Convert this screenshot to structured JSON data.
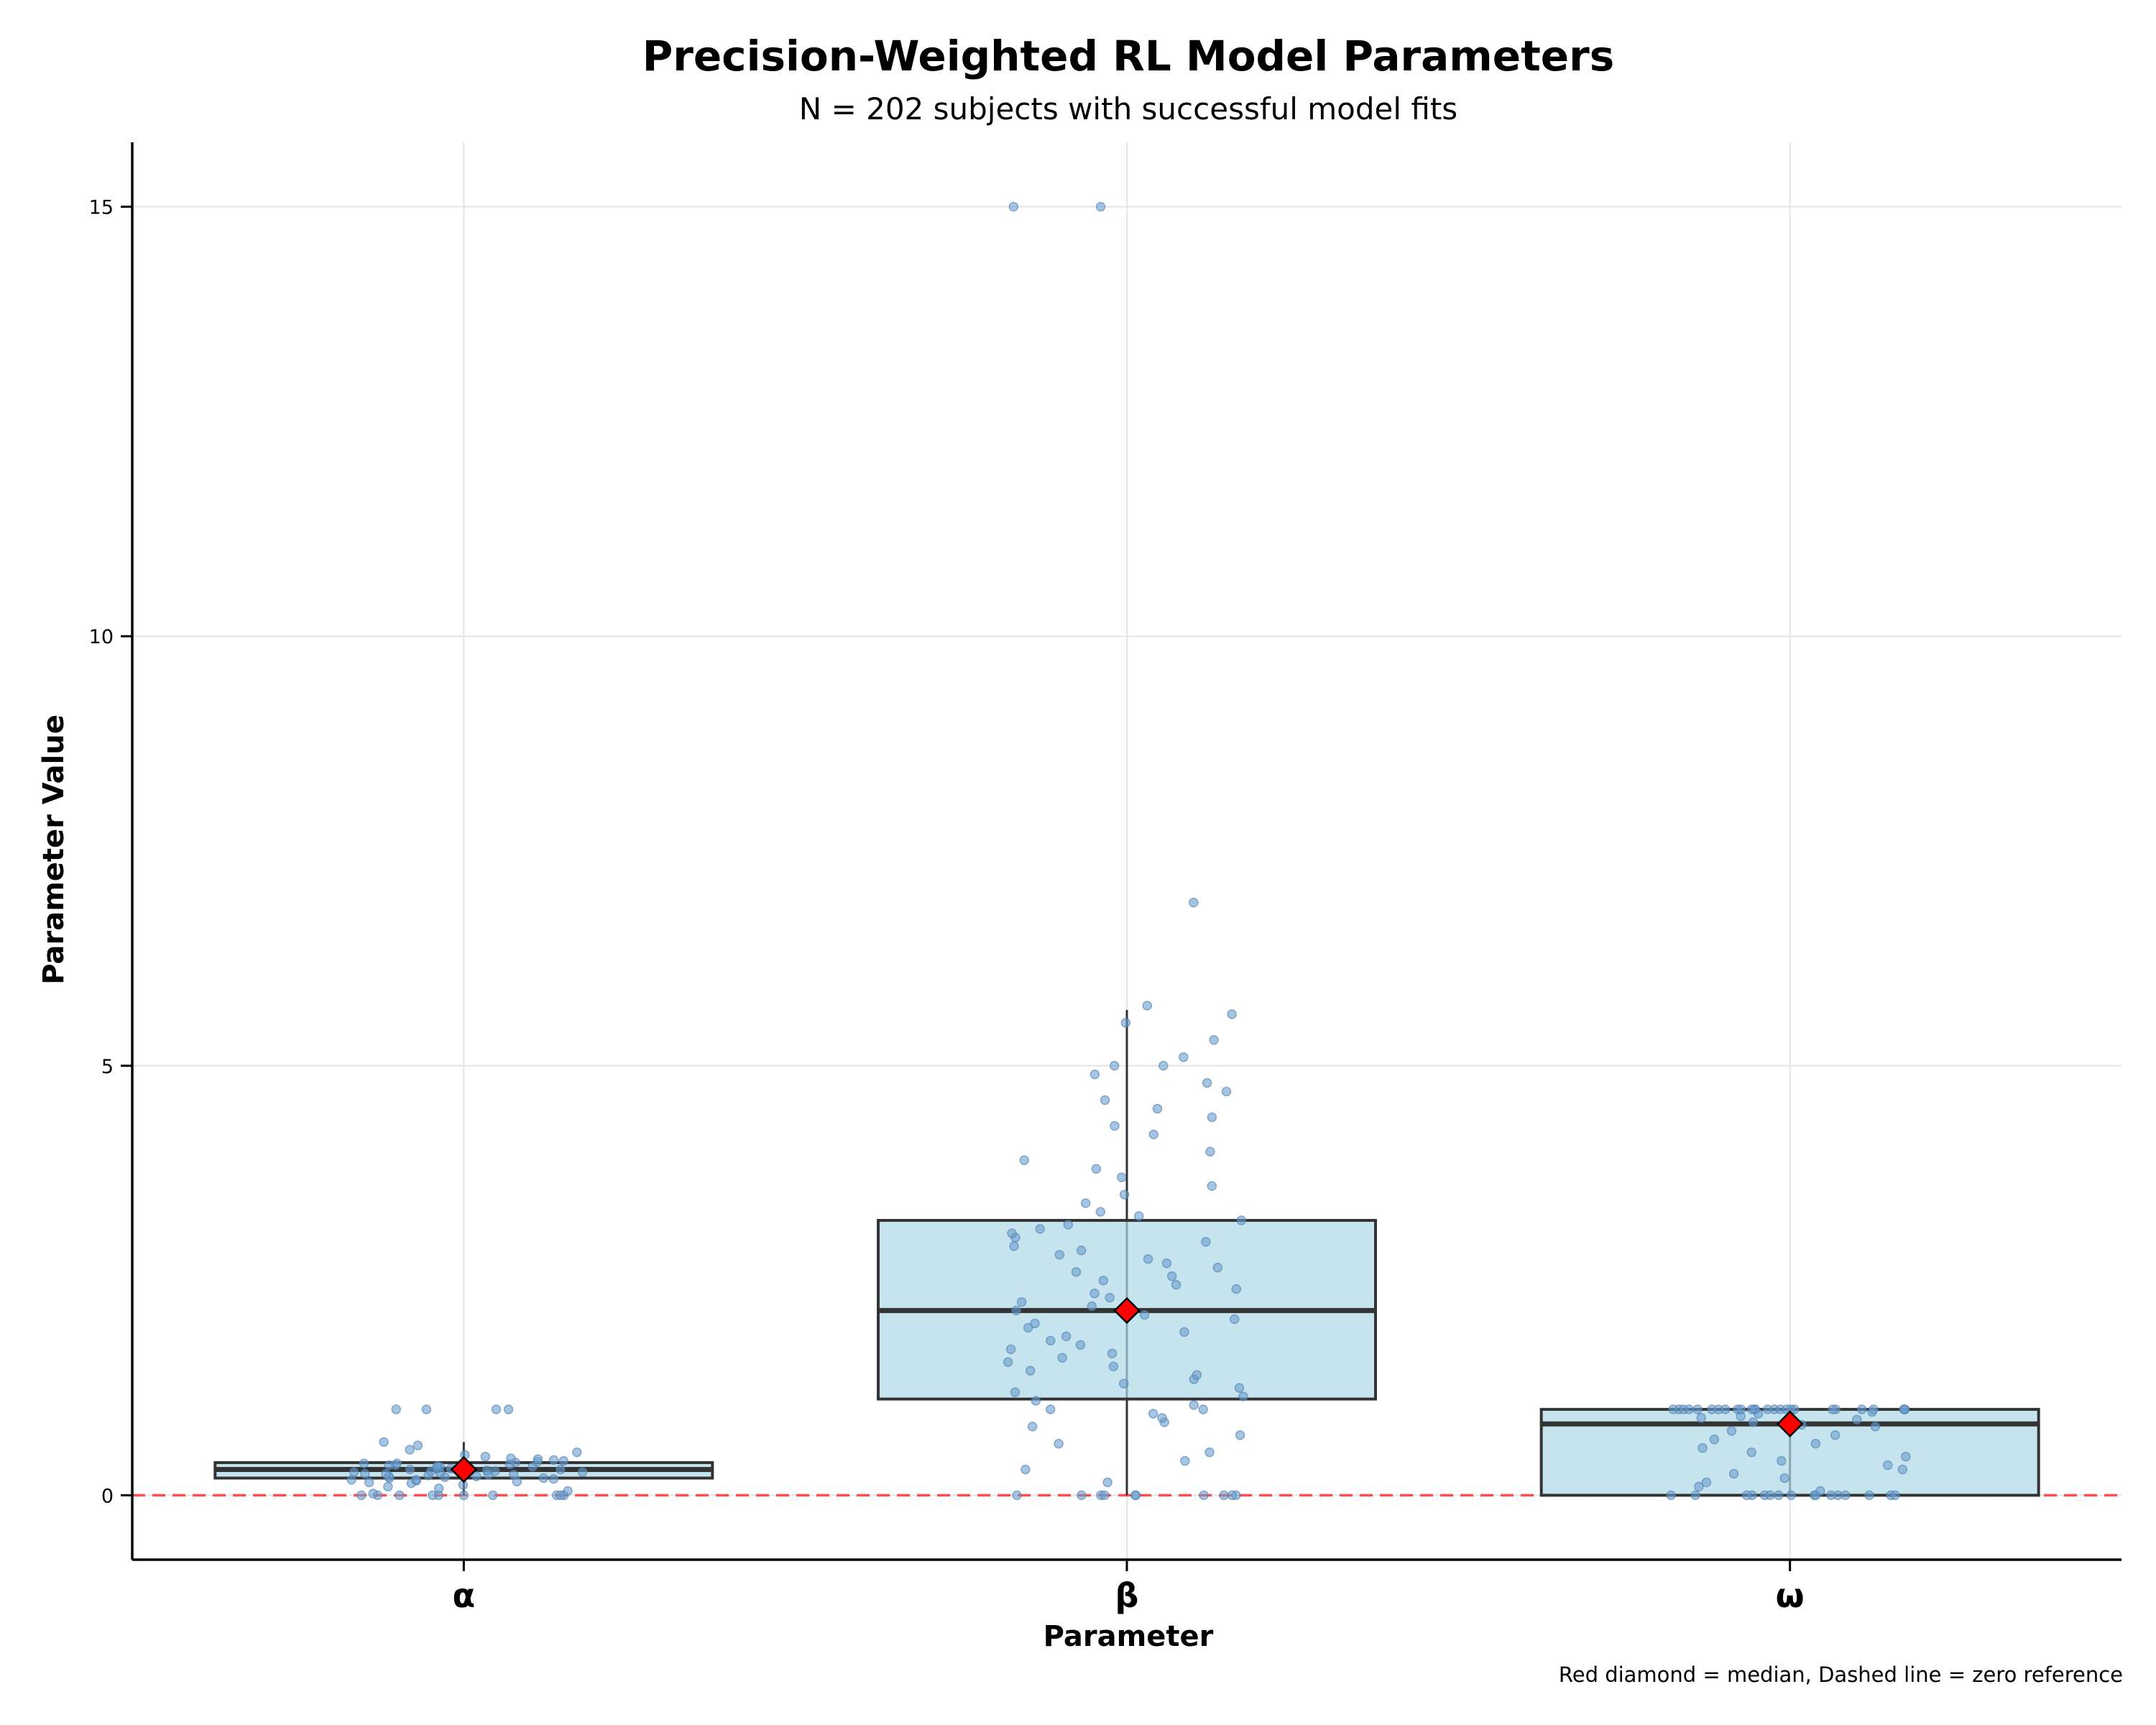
{
  "chart_data": {
    "type": "box",
    "title": "Precision-Weighted RL Model Parameters",
    "subtitle": "N = 202 subjects with successful model fits",
    "xlabel": "Parameter",
    "ylabel": "Parameter Value",
    "footnote": "Red diamond = median, Dashed line = zero reference",
    "categories": [
      "α",
      "β",
      "ω"
    ],
    "yticks": [
      0,
      5,
      10,
      15
    ],
    "ytick_labels": [
      "0",
      "5",
      "10",
      "15"
    ],
    "ylim": [
      -0.75,
      15.75
    ],
    "grid": true,
    "reference_line": {
      "y": 0,
      "style": "dashed",
      "color": "#ff3333"
    },
    "colors": {
      "box_fill": "#add8e6",
      "box_edge": "#333333",
      "points": "#6a9fcf",
      "median_marker": "#ff0000",
      "grid": "#e5e5e5"
    },
    "boxes": [
      {
        "category": "α",
        "q1": 0.2,
        "median": 0.3,
        "q3": 0.38,
        "whisker_low": 0.0,
        "whisker_high": 0.62,
        "points": [
          0,
          0,
          0,
          0,
          0,
          0,
          0,
          0,
          0,
          0,
          0.02,
          0.05,
          0.08,
          0.1,
          0.12,
          0.14,
          0.15,
          0.16,
          0.17,
          0.18,
          0.18,
          0.19,
          0.2,
          0.2,
          0.21,
          0.22,
          0.22,
          0.23,
          0.24,
          0.24,
          0.25,
          0.25,
          0.26,
          0.27,
          0.27,
          0.28,
          0.28,
          0.29,
          0.3,
          0.3,
          0.31,
          0.31,
          0.32,
          0.33,
          0.33,
          0.34,
          0.35,
          0.35,
          0.36,
          0.37,
          0.37,
          0.38,
          0.39,
          0.4,
          0.41,
          0.42,
          0.43,
          0.45,
          0.47,
          0.5,
          0.53,
          0.58,
          0.62,
          1.0,
          1.0,
          1.0,
          1.0
        ]
      },
      {
        "category": "β",
        "q1": 1.12,
        "median": 2.15,
        "q3": 3.2,
        "whisker_low": 0.0,
        "whisker_high": 5.65,
        "points": [
          0,
          0,
          0,
          0,
          0,
          0,
          0,
          0,
          0,
          0,
          0.15,
          0.3,
          0.4,
          0.5,
          0.6,
          0.7,
          0.8,
          0.85,
          0.9,
          0.95,
          1.0,
          1.0,
          1.05,
          1.1,
          1.15,
          1.2,
          1.25,
          1.3,
          1.35,
          1.4,
          1.45,
          1.5,
          1.55,
          1.6,
          1.65,
          1.7,
          1.75,
          1.8,
          1.85,
          1.9,
          1.95,
          2.0,
          2.05,
          2.1,
          2.15,
          2.2,
          2.25,
          2.3,
          2.35,
          2.4,
          2.45,
          2.5,
          2.55,
          2.6,
          2.65,
          2.7,
          2.75,
          2.8,
          2.85,
          2.9,
          2.95,
          3.0,
          3.05,
          3.1,
          3.15,
          3.2,
          3.25,
          3.3,
          3.4,
          3.5,
          3.6,
          3.7,
          3.8,
          3.9,
          4.0,
          4.2,
          4.3,
          4.4,
          4.5,
          4.6,
          4.7,
          4.8,
          4.9,
          5.0,
          5.0,
          5.1,
          5.3,
          5.5,
          5.6,
          5.7,
          6.9,
          15.0,
          15.0
        ]
      },
      {
        "category": "ω",
        "q1": 0.0,
        "median": 0.83,
        "q3": 1.0,
        "whisker_low": 0.0,
        "whisker_high": 1.0,
        "points": [
          0,
          0,
          0,
          0,
          0,
          0,
          0,
          0,
          0,
          0,
          0,
          0,
          0,
          0,
          0,
          0,
          0.05,
          0.1,
          0.15,
          0.2,
          0.25,
          0.3,
          0.35,
          0.4,
          0.45,
          0.5,
          0.55,
          0.6,
          0.65,
          0.7,
          0.75,
          0.8,
          0.82,
          0.85,
          0.88,
          0.9,
          0.92,
          0.95,
          0.97,
          1.0,
          1.0,
          1.0,
          1.0,
          1.0,
          1.0,
          1.0,
          1.0,
          1.0,
          1.0,
          1.0,
          1.0,
          1.0,
          1.0,
          1.0,
          1.0,
          1.0,
          1.0,
          1.0,
          1.0,
          1.0,
          1.0,
          1.0,
          1.0,
          1.0,
          1.0
        ]
      }
    ]
  }
}
